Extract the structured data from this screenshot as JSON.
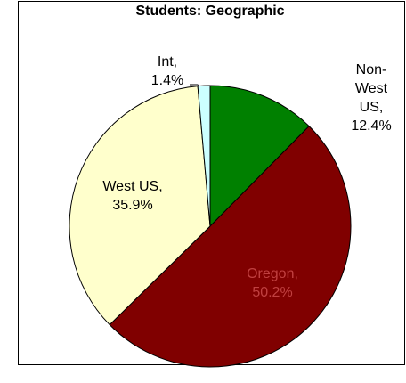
{
  "chart_data": {
    "type": "pie",
    "title": "Students: Geographic",
    "categories": [
      "Non-West US,",
      "Oregon,",
      "West US,",
      "Int,"
    ],
    "values": [
      12.4,
      50.2,
      35.9,
      1.4
    ],
    "value_labels": [
      "12.4%",
      "50.2%",
      "35.9%",
      "1.4%"
    ],
    "colors": [
      "#008000",
      "#800000",
      "#ffffcc",
      "#ccffff"
    ]
  }
}
